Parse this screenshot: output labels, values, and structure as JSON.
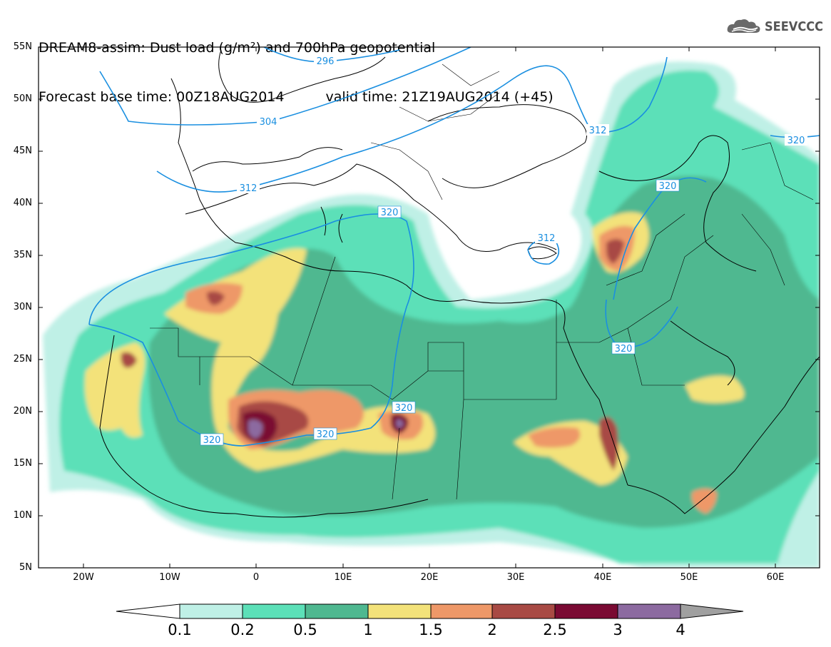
{
  "header": {
    "line1": "DREAM8-assim: Dust load (g/m²) and 700hPa geopotential",
    "line2_left": "Forecast base time: 00Z18AUG2014",
    "line2_right": "valid time: 21Z19AUG2014 (+45)"
  },
  "logo": {
    "text": "SEEVCCC",
    "icon": "cloud-icon"
  },
  "axes": {
    "lat_labels": [
      "55N",
      "50N",
      "45N",
      "40N",
      "35N",
      "30N",
      "25N",
      "20N",
      "15N",
      "10N",
      "5N"
    ],
    "lon_labels": [
      "20W",
      "10W",
      "0",
      "10E",
      "20E",
      "30E",
      "40E",
      "50E",
      "60E"
    ]
  },
  "contour_labels": [
    "296",
    "304",
    "312",
    "312",
    "312",
    "320",
    "320",
    "320",
    "320",
    "320",
    "320",
    "320"
  ],
  "colorbar": {
    "labels": [
      "0.1",
      "0.2",
      "0.5",
      "1",
      "1.5",
      "2",
      "2.5",
      "3",
      "4"
    ],
    "colors": [
      "#bff0e6",
      "#5ce0b8",
      "#4fb890",
      "#f3e27a",
      "#ee9868",
      "#a84a44",
      "#7a0a33",
      "#8c6aa0",
      "#a0a0a0"
    ]
  }
}
